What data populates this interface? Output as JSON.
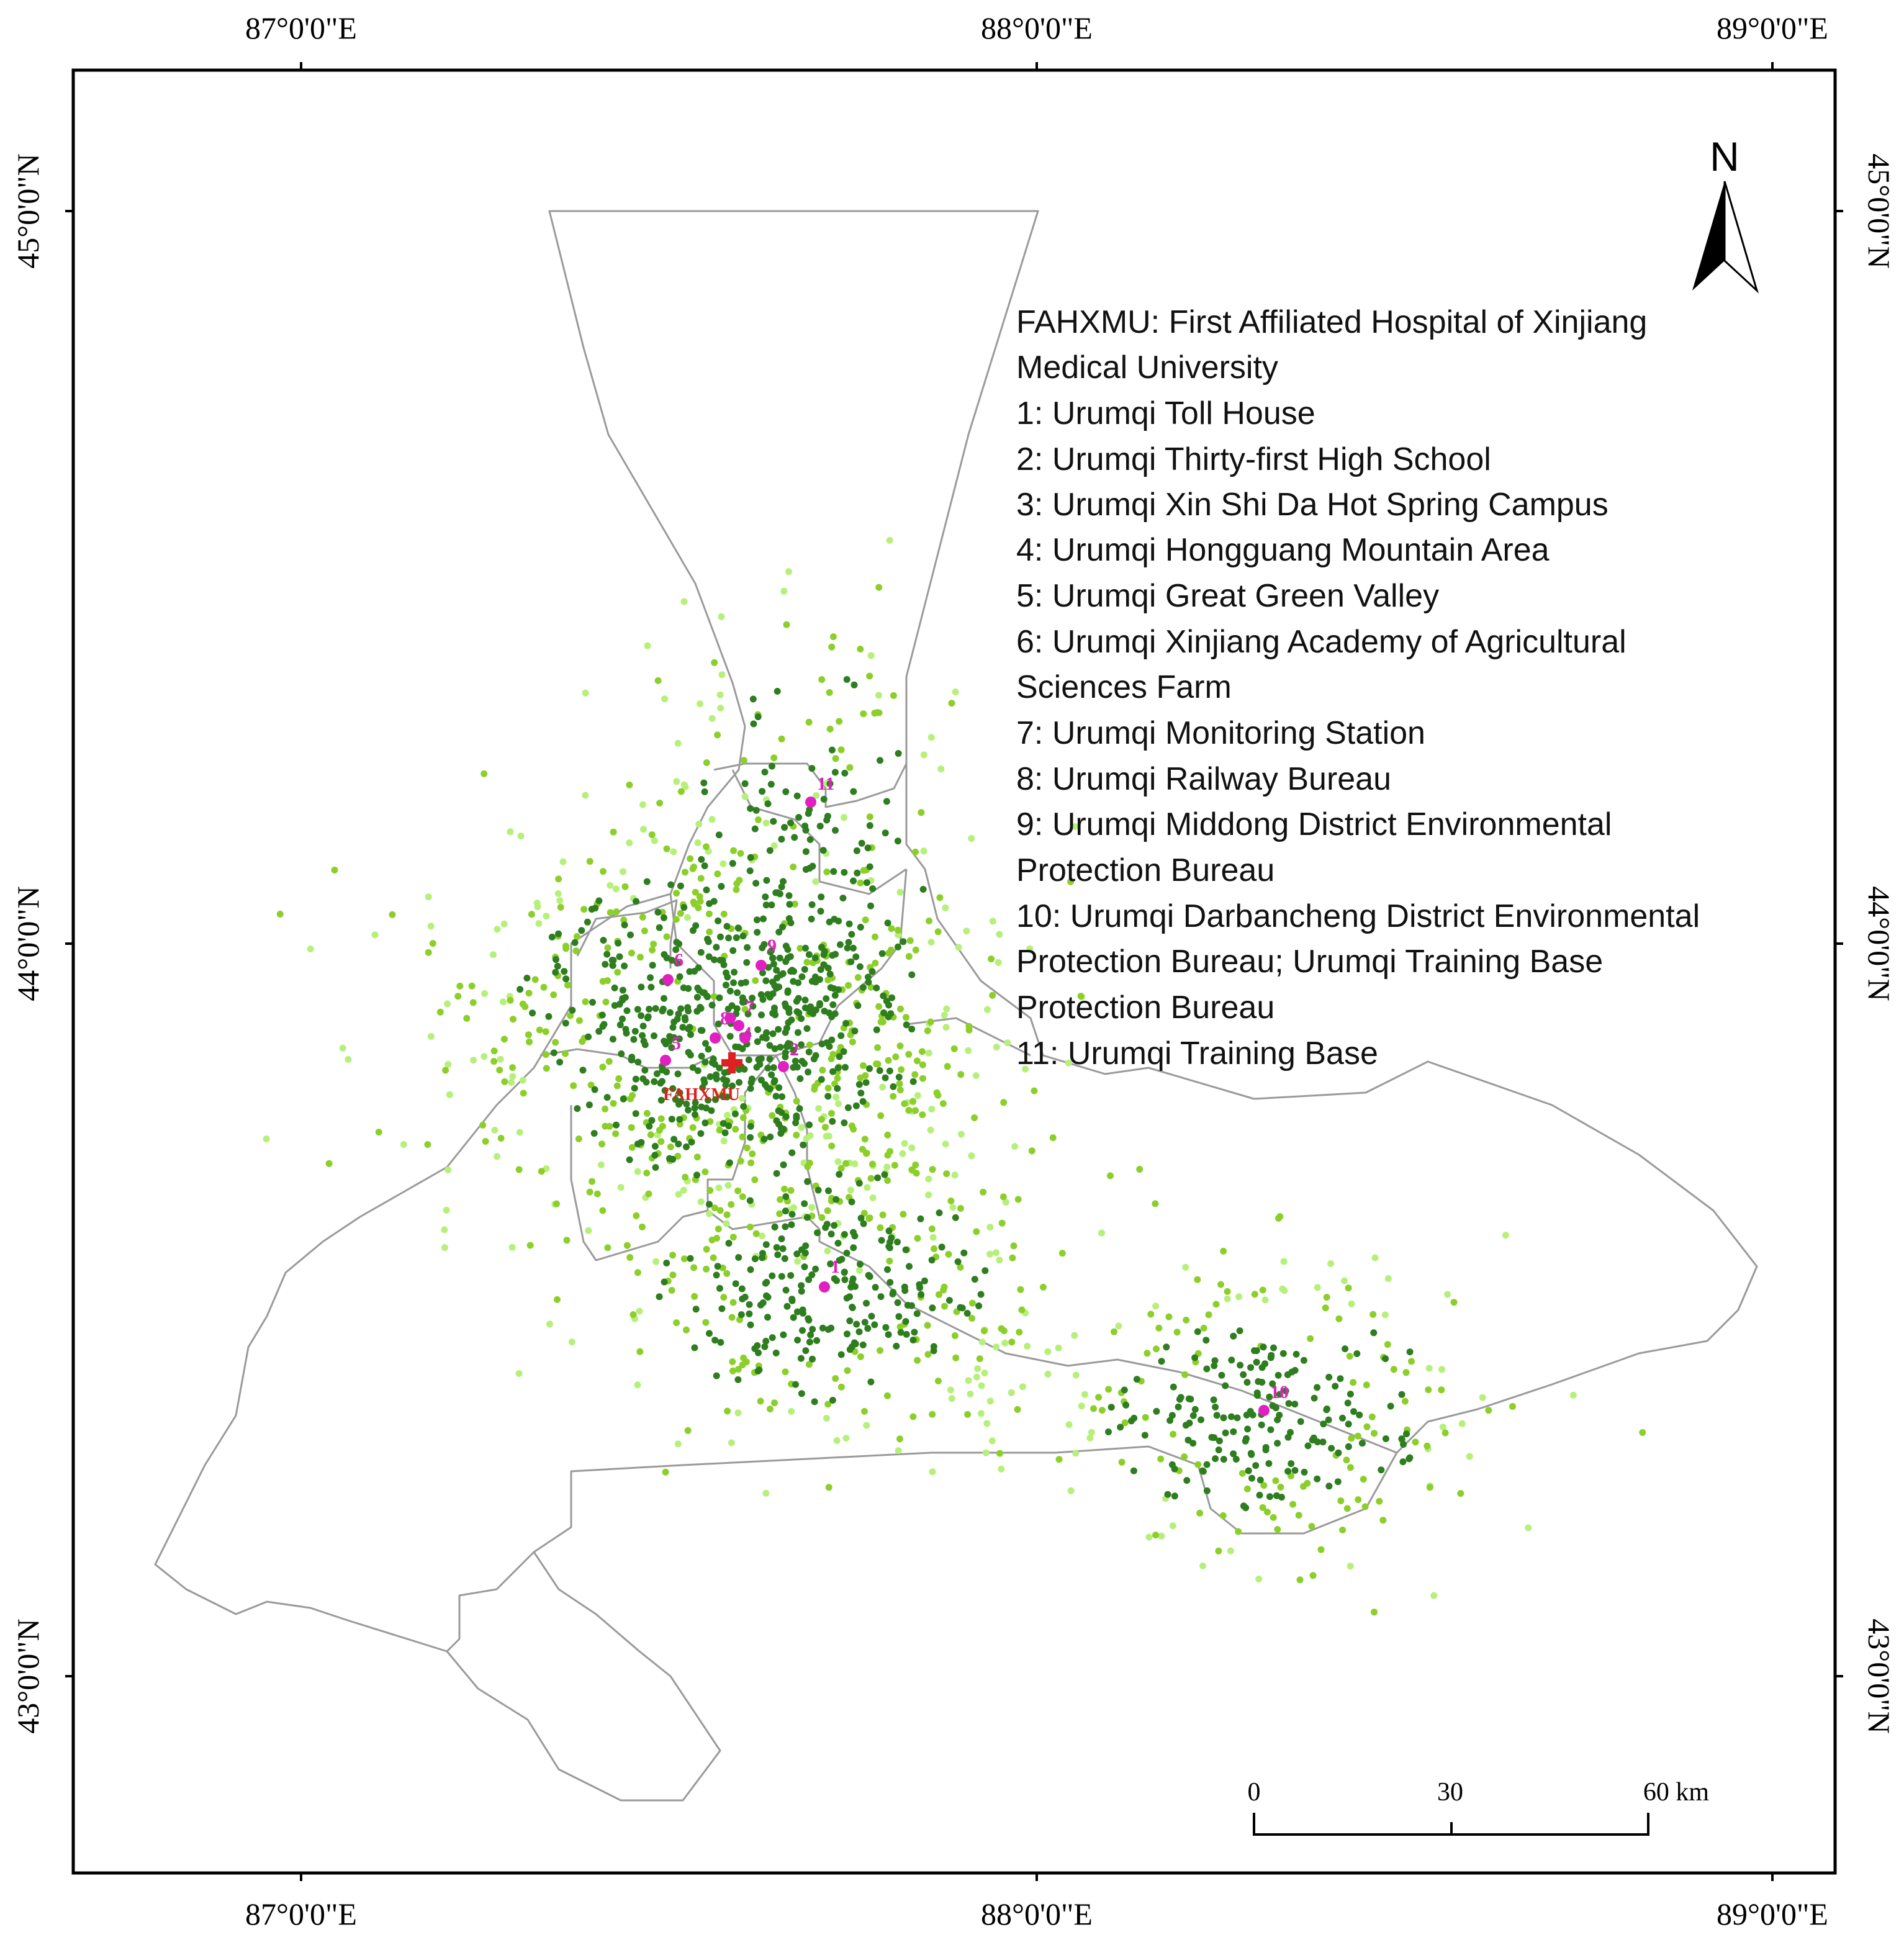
{
  "map": {
    "top_ticks": [
      "87°0'0\"E",
      "88°0'0\"E",
      "89°0'0\"E"
    ],
    "bottom_ticks": [
      "87°0'0\"E",
      "88°0'0\"E",
      "89°0'0\"E"
    ],
    "left_ticks": [
      "45°0'0\"N",
      "44°0'0\"N",
      "43°0'0\"N"
    ],
    "right_ticks": [
      "45°0'0\"N",
      "44°0'0\"N",
      "43°0'0\"N"
    ],
    "north_label": "N",
    "scale_labels": [
      "0",
      "30",
      "60 km"
    ],
    "hospital_label": "FAHXMU",
    "colors": {
      "outline": "#9a9a9a",
      "dense": "#2e7d1f",
      "mid": "#8ccf2a",
      "light": "#b6f07a",
      "site": "#e020c0",
      "hospital": "#e02020"
    },
    "legend_lines": [
      "FAHXMU: First Affiliated Hospital of Xinjiang",
      "Medical University",
      "1: Urumqi Toll House",
      "2: Urumqi Thirty-first High School",
      "3: Urumqi Xin Shi Da Hot Spring Campus",
      "4: Urumqi Hongguang Mountain Area",
      "5: Urumqi Great Green Valley",
      "6: Urumqi Xinjiang Academy of Agricultural",
      "Sciences Farm",
      "7: Urumqi Monitoring Station",
      "8: Urumqi Railway Bureau",
      "9: Urumqi Middong District Environmental",
      "Protection Bureau",
      "10: Urumqi Darbancheng District Environmental",
      "Protection Bureau; Urumqi Training Base",
      "Protection Bureau",
      "11: Urumqi Training Base"
    ],
    "sites": [
      {
        "label": "1"
      },
      {
        "label": "2"
      },
      {
        "label": "3"
      },
      {
        "label": "4"
      },
      {
        "label": "5"
      },
      {
        "label": "6"
      },
      {
        "label": "7"
      },
      {
        "label": "8"
      },
      {
        "label": "9"
      },
      {
        "label": "10"
      },
      {
        "label": "11"
      }
    ]
  }
}
